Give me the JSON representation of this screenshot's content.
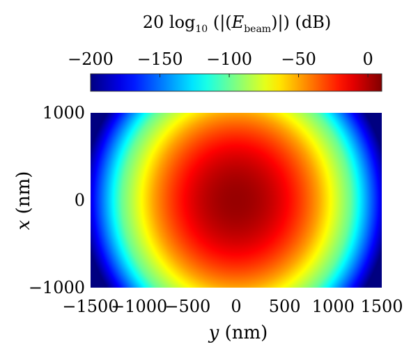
{
  "chart_data": {
    "type": "heatmap",
    "title": "",
    "colorbar": {
      "label_prefix": "20 log",
      "label_log_base": "10",
      "label_open": " (|(",
      "label_var": "E",
      "label_var_sub": "beam",
      "label_close": ")|) (dB)",
      "ticks": [
        -200,
        -150,
        -100,
        -50,
        0
      ],
      "range": [
        -200,
        10
      ],
      "placement": "top"
    },
    "xlabel_var": "y",
    "xlabel_unit": " (nm)",
    "ylabel_var": "x",
    "ylabel_unit": " (nm)",
    "xticks": [
      -1500,
      -1000,
      -500,
      0,
      500,
      1000,
      1500
    ],
    "yticks": [
      -1000,
      0,
      1000
    ],
    "xlim": [
      -1500,
      1500
    ],
    "ylim": [
      -1000,
      1000
    ],
    "field": {
      "model": "gaussian-beam-intensity-dB",
      "peak_db": 5,
      "contours_db": [
        {
          "level": -50,
          "y_at_x0": 850,
          "x_at_y0": 1000
        },
        {
          "level": -100,
          "y_at_x0": 1180
        },
        {
          "level": -150,
          "y_at_x0": 1380
        }
      ]
    },
    "grid": false,
    "colormap": "jet"
  }
}
